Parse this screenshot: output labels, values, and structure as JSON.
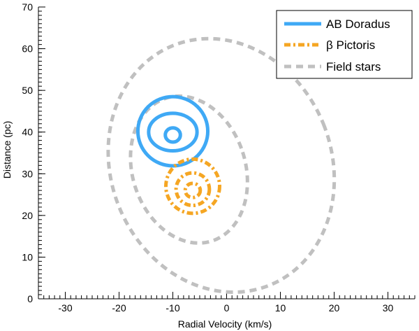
{
  "chart_data": {
    "type": "contour",
    "title": "",
    "xlabel": "Radial Velocity (km/s)",
    "ylabel": "Distance (pc)",
    "xlim": [
      -35,
      35
    ],
    "ylim": [
      0,
      70
    ],
    "xticks": [
      -30,
      -20,
      -10,
      0,
      10,
      20,
      30
    ],
    "yticks": [
      0,
      10,
      20,
      30,
      40,
      50,
      60,
      70
    ],
    "x_minor_step": 1,
    "y_minor_step": 1,
    "grid": false,
    "legend_position": "top-right",
    "series": [
      {
        "name": "AB Doradus",
        "color": "#3fa9f5",
        "style": "solid",
        "contours": [
          {
            "cx": -10,
            "cy": 39.3,
            "rx": 1.4,
            "ry": 1.7,
            "angle_deg": 0
          },
          {
            "cx": -10,
            "cy": 40.0,
            "rx": 4.5,
            "ry": 4.5,
            "angle_deg": 0
          },
          {
            "cx": -10,
            "cy": 40.2,
            "rx": 6.5,
            "ry": 8.3,
            "angle_deg": 0
          }
        ]
      },
      {
        "name": "β Pictoris",
        "color": "#f5a623",
        "style": "dashdot",
        "contours": [
          {
            "cx": -6.3,
            "cy": 26.0,
            "rx": 1.4,
            "ry": 1.7,
            "angle_deg": 0
          },
          {
            "cx": -6.3,
            "cy": 26.3,
            "rx": 3.1,
            "ry": 3.9,
            "angle_deg": 0
          },
          {
            "cx": -6.3,
            "cy": 27.0,
            "rx": 5.0,
            "ry": 6.5,
            "angle_deg": 0
          }
        ]
      },
      {
        "name": "Field stars",
        "color": "#c0c0c0",
        "style": "dashed",
        "contours": [
          {
            "cx": -7.0,
            "cy": 31.0,
            "rx": 10.5,
            "ry": 18.0,
            "angle_deg": -18
          },
          {
            "cx": -1.0,
            "cy": 32.0,
            "rx": 20.5,
            "ry": 31.0,
            "angle_deg": -22
          }
        ]
      }
    ]
  }
}
